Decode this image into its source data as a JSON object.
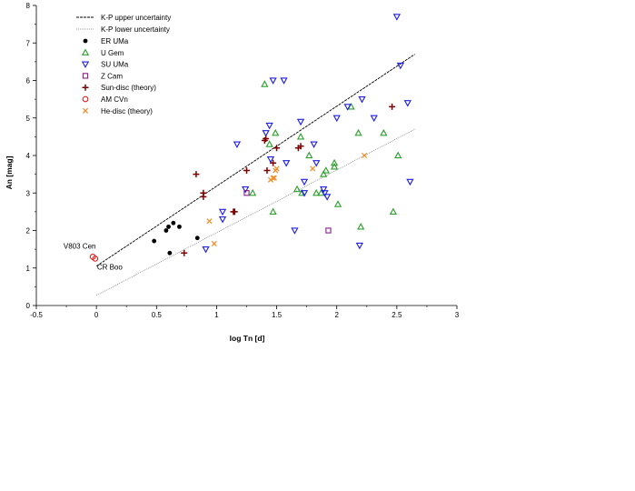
{
  "chart_data": {
    "type": "scatter",
    "title": "",
    "xlabel": "log Tn [d]",
    "ylabel": "An [mag]",
    "xlim": [
      -0.5,
      3
    ],
    "ylim": [
      0,
      8
    ],
    "xticks": [
      -0.5,
      0,
      0.5,
      1,
      1.5,
      2,
      2.5,
      3
    ],
    "xtick_labels": [
      "-0.5",
      "0",
      "0.5",
      "1",
      "1.5",
      "2",
      "2.5",
      "3"
    ],
    "yticks": [
      0,
      1,
      2,
      3,
      4,
      5,
      6,
      7,
      8
    ],
    "ytick_labels": [
      "0",
      "1",
      "2",
      "3",
      "4",
      "5",
      "6",
      "7",
      "8"
    ],
    "grid": false,
    "legend_position": "top-left",
    "lines": [
      {
        "name": "K-P upper uncertainty",
        "style": "dashed",
        "color": "#000000",
        "x": [
          0,
          2.65
        ],
        "y": [
          1.05,
          6.7
        ]
      },
      {
        "name": "K-P lower uncertainty",
        "style": "dotted",
        "color": "#888888",
        "x": [
          0,
          2.65
        ],
        "y": [
          0.27,
          4.7
        ]
      }
    ],
    "series": [
      {
        "name": "ER UMa",
        "marker": "dot",
        "color": "#000000",
        "x": [
          0.48,
          0.58,
          0.61,
          0.64,
          0.69,
          0.84,
          0.6
        ],
        "y": [
          1.72,
          2.0,
          1.4,
          2.2,
          2.1,
          1.8,
          2.1
        ]
      },
      {
        "name": "U Gem",
        "marker": "triangle-up",
        "color": "#2ca02c",
        "x": [
          1.4,
          1.44,
          1.49,
          1.7,
          1.77,
          1.83,
          1.91,
          1.98,
          2.12,
          2.18,
          2.39,
          1.3,
          1.47,
          1.67,
          1.71,
          1.87,
          1.89,
          1.98,
          2.01,
          2.2,
          2.47,
          2.51
        ],
        "y": [
          5.9,
          4.3,
          4.6,
          4.5,
          4.0,
          3.0,
          3.6,
          3.7,
          5.3,
          4.6,
          4.6,
          3.0,
          2.5,
          3.1,
          3.0,
          3.0,
          3.5,
          3.8,
          2.7,
          2.1,
          2.5,
          4.0
        ]
      },
      {
        "name": "SU UMa",
        "marker": "triangle-down",
        "color": "#1f1fe6",
        "x": [
          0.91,
          1.05,
          1.05,
          1.17,
          1.24,
          1.41,
          1.44,
          1.47,
          1.56,
          1.58,
          1.65,
          1.7,
          1.73,
          1.81,
          1.83,
          1.89,
          1.9,
          1.92,
          2.0,
          2.09,
          2.19,
          2.21,
          2.31,
          2.5,
          2.53,
          2.59,
          2.61,
          1.45,
          1.73
        ],
        "y": [
          1.5,
          2.5,
          2.3,
          4.3,
          3.1,
          4.6,
          4.8,
          6.0,
          6.0,
          3.8,
          2.0,
          4.9,
          3.3,
          4.3,
          3.8,
          3.1,
          3.0,
          2.9,
          5.0,
          5.3,
          1.6,
          5.5,
          5.0,
          7.7,
          6.4,
          5.4,
          3.3,
          3.9,
          3.0
        ]
      },
      {
        "name": "Z Cam",
        "marker": "square",
        "color": "#8b1a8b",
        "x": [
          1.25,
          1.93
        ],
        "y": [
          3.0,
          2.0
        ]
      },
      {
        "name": "Sun-disc (theory)",
        "marker": "plus",
        "color": "#7f0000",
        "x": [
          0.83,
          0.89,
          0.89,
          1.14,
          1.15,
          1.25,
          1.4,
          1.41,
          1.42,
          1.5,
          1.68,
          1.7,
          0.73,
          2.46,
          1.47
        ],
        "y": [
          3.5,
          3.0,
          2.9,
          2.5,
          2.5,
          3.6,
          4.4,
          4.45,
          3.6,
          4.2,
          4.2,
          4.25,
          1.4,
          5.3,
          3.8
        ]
      },
      {
        "name": "AM CVn",
        "marker": "circle-open",
        "color": "#e31a1c",
        "x": [
          -0.03,
          -0.01
        ],
        "y": [
          1.3,
          1.25
        ]
      },
      {
        "name": "He-disc (theory)",
        "marker": "x",
        "color": "#f28e2b",
        "x": [
          0.94,
          0.98,
          1.45,
          1.48,
          1.5,
          1.8,
          2.23,
          1.49,
          1.47
        ],
        "y": [
          2.25,
          1.65,
          3.35,
          3.4,
          3.65,
          3.65,
          4.0,
          3.6,
          3.4
        ]
      }
    ],
    "annotations": [
      {
        "text": "V803 Cen",
        "x": -0.02,
        "y": 1.32
      },
      {
        "text": "CR Boo",
        "x": -0.01,
        "y": 1.2
      }
    ]
  }
}
